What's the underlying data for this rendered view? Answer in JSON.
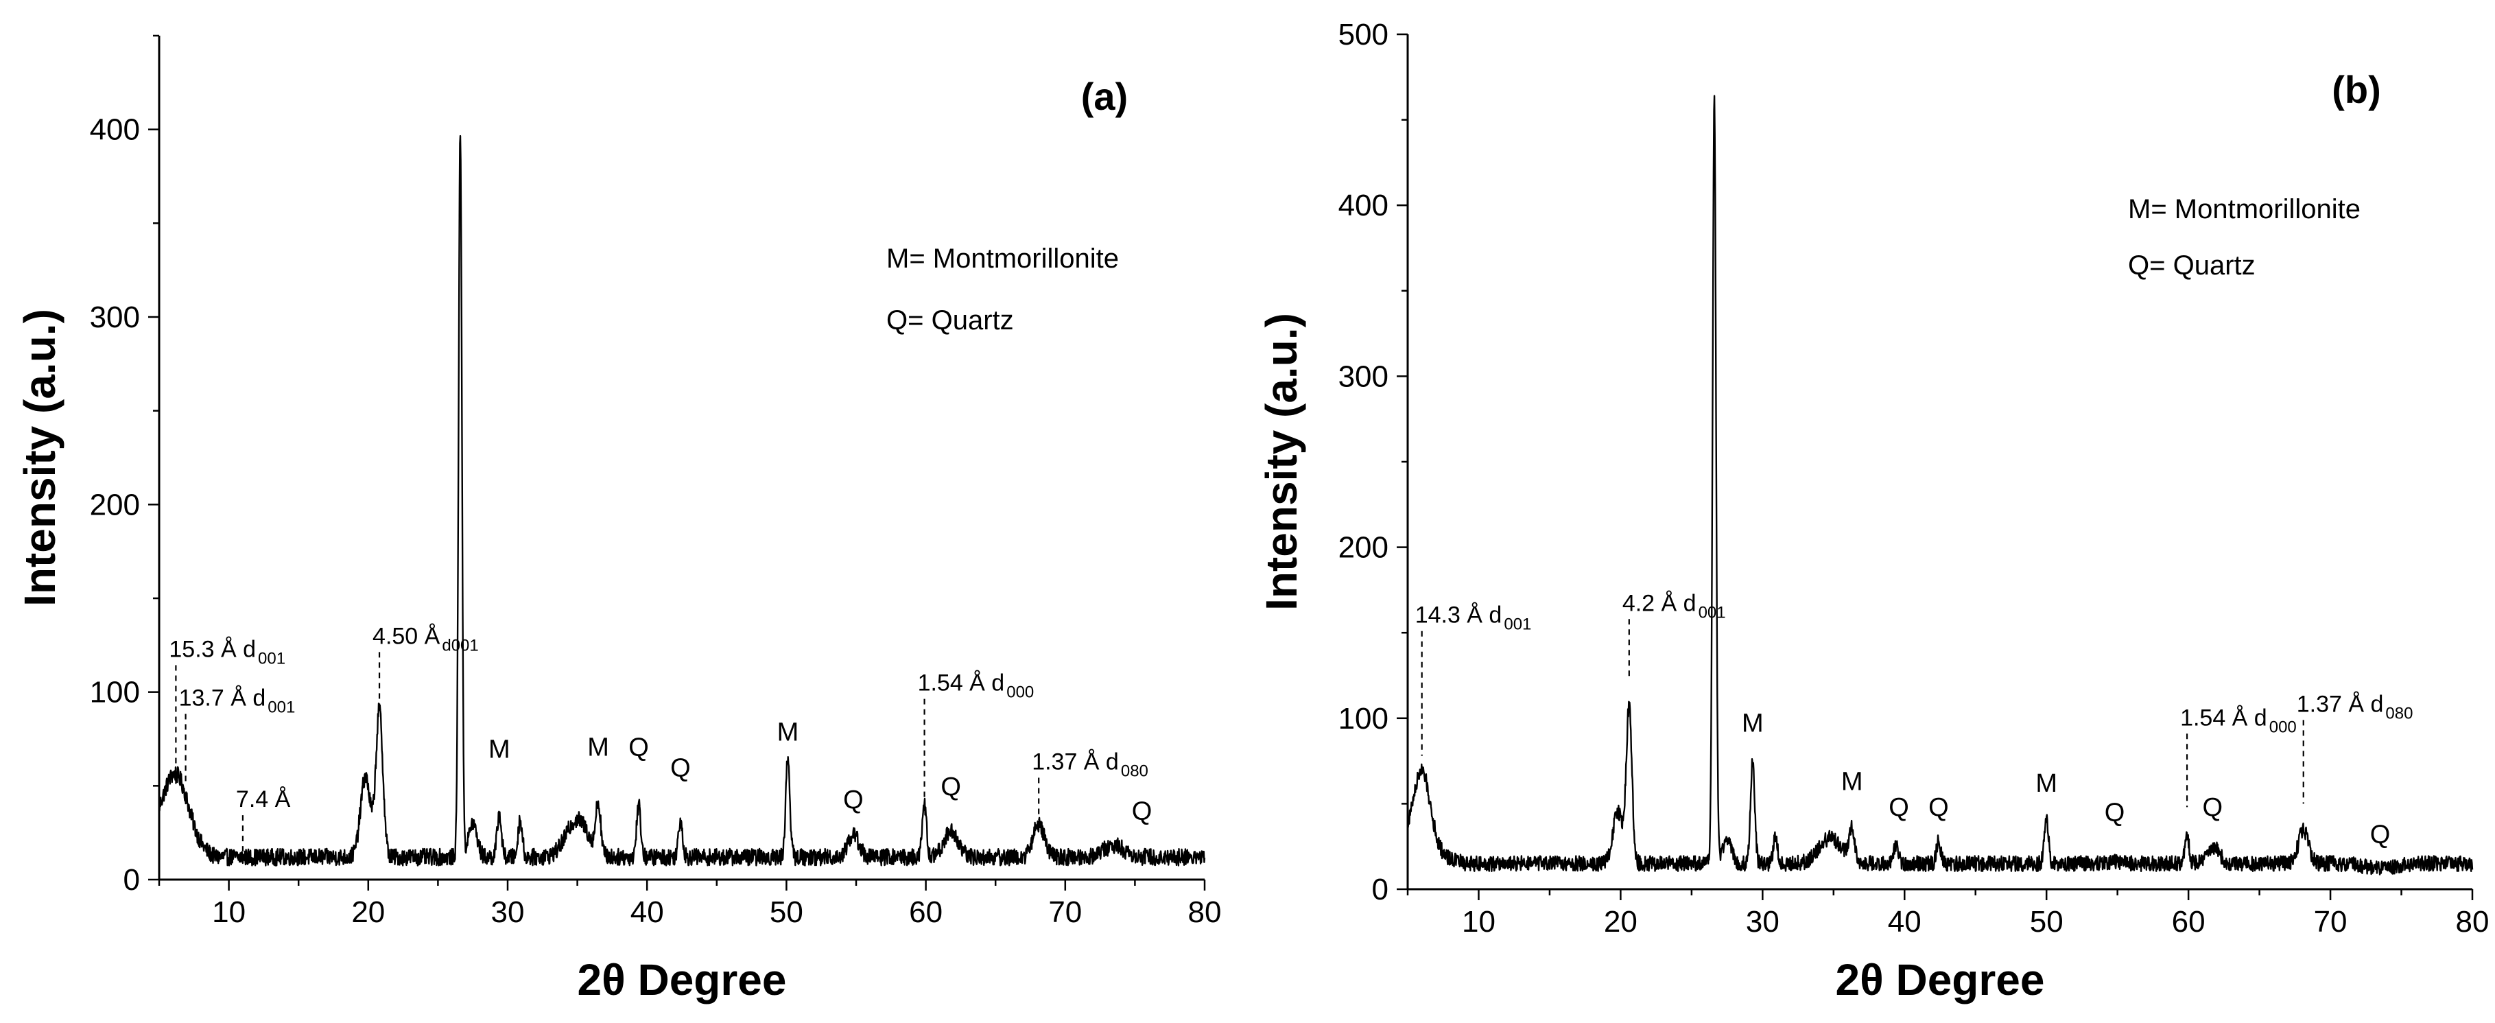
{
  "chart_data": [
    {
      "type": "line",
      "panel": "(a)",
      "xlabel": "2θ Degree",
      "ylabel": "Intensity (a.u.)",
      "xlim": [
        5,
        80
      ],
      "ylim": [
        0,
        450
      ],
      "xticks": [
        10,
        20,
        30,
        40,
        50,
        60,
        70,
        80
      ],
      "yticks": [
        0,
        100,
        200,
        300,
        400
      ],
      "baseline": 12,
      "legend": [
        "M= Montmorillonite",
        "Q= Quartz"
      ],
      "legend_position": "top-right",
      "peaks": [
        {
          "x": 6.2,
          "y": 48,
          "w": 0.9
        },
        {
          "x": 19.8,
          "y": 55,
          "w": 0.35
        },
        {
          "x": 20.8,
          "y": 90,
          "w": 0.25
        },
        {
          "x": 26.6,
          "y": 400,
          "w": 0.12
        },
        {
          "x": 27.5,
          "y": 30,
          "w": 0.3
        },
        {
          "x": 29.4,
          "y": 35,
          "w": 0.15
        },
        {
          "x": 30.9,
          "y": 32,
          "w": 0.15
        },
        {
          "x": 35.0,
          "y": 32,
          "w": 0.8
        },
        {
          "x": 36.5,
          "y": 38,
          "w": 0.18
        },
        {
          "x": 39.4,
          "y": 40,
          "w": 0.15
        },
        {
          "x": 42.4,
          "y": 32,
          "w": 0.15
        },
        {
          "x": 50.1,
          "y": 65,
          "w": 0.15
        },
        {
          "x": 54.8,
          "y": 24,
          "w": 0.4
        },
        {
          "x": 59.9,
          "y": 40,
          "w": 0.15
        },
        {
          "x": 61.8,
          "y": 26,
          "w": 0.5
        },
        {
          "x": 68.1,
          "y": 30,
          "w": 0.4
        },
        {
          "x": 73.5,
          "y": 18,
          "w": 0.8
        }
      ],
      "annotations": [
        {
          "text": "15.3 Å d",
          "sub": "001",
          "x": 6.2,
          "top": 118,
          "bottom": 50
        },
        {
          "text": "13.7 Å d",
          "sub": "001",
          "x": 6.9,
          "top": 92,
          "bottom": 50
        },
        {
          "text": "7.4 Å",
          "sub": "",
          "x": 11.0,
          "top": 38,
          "bottom": 10
        },
        {
          "text": "4.50 Å",
          "sub": "d001",
          "x": 20.8,
          "top": 125,
          "bottom": 92
        },
        {
          "text": "1.54 Å d",
          "sub": "000",
          "x": 59.9,
          "top": 100,
          "bottom": 42
        },
        {
          "text": "1.37 Å d",
          "sub": "080",
          "x": 68.1,
          "top": 58,
          "bottom": 32
        }
      ],
      "labels": [
        {
          "text": "M",
          "x": 29.4,
          "y": 65
        },
        {
          "text": "M",
          "x": 36.5,
          "y": 66
        },
        {
          "text": "Q",
          "x": 39.4,
          "y": 66
        },
        {
          "text": "Q",
          "x": 42.4,
          "y": 55
        },
        {
          "text": "M",
          "x": 50.1,
          "y": 74
        },
        {
          "text": "Q",
          "x": 54.8,
          "y": 38
        },
        {
          "text": "Q",
          "x": 61.8,
          "y": 45
        },
        {
          "text": "Q",
          "x": 75.5,
          "y": 32
        }
      ]
    },
    {
      "type": "line",
      "panel": "(b)",
      "xlabel": "2θ Degree",
      "ylabel": "Intensity (a.u.)",
      "xlim": [
        5,
        80
      ],
      "ylim": [
        0,
        500
      ],
      "xticks": [
        10,
        20,
        30,
        40,
        50,
        60,
        70,
        80
      ],
      "yticks": [
        0,
        100,
        200,
        300,
        400,
        500
      ],
      "baseline": 15,
      "legend": [
        "M= Montmorillonite",
        "Q= Quartz"
      ],
      "legend_position": "top-right",
      "peaks": [
        {
          "x": 6.0,
          "y": 60,
          "w": 0.6
        },
        {
          "x": 19.8,
          "y": 45,
          "w": 0.35
        },
        {
          "x": 20.6,
          "y": 105,
          "w": 0.2
        },
        {
          "x": 26.6,
          "y": 460,
          "w": 0.12
        },
        {
          "x": 27.5,
          "y": 30,
          "w": 0.3
        },
        {
          "x": 29.3,
          "y": 75,
          "w": 0.15
        },
        {
          "x": 30.9,
          "y": 30,
          "w": 0.15
        },
        {
          "x": 34.8,
          "y": 30,
          "w": 0.8
        },
        {
          "x": 36.3,
          "y": 35,
          "w": 0.18
        },
        {
          "x": 39.4,
          "y": 25,
          "w": 0.18
        },
        {
          "x": 42.4,
          "y": 28,
          "w": 0.15
        },
        {
          "x": 50.0,
          "y": 40,
          "w": 0.15
        },
        {
          "x": 54.8,
          "y": 16,
          "w": 0.4
        },
        {
          "x": 59.9,
          "y": 32,
          "w": 0.15
        },
        {
          "x": 61.7,
          "y": 25,
          "w": 0.45
        },
        {
          "x": 68.1,
          "y": 35,
          "w": 0.35
        },
        {
          "x": 73.5,
          "y": 12,
          "w": 1.0
        }
      ],
      "annotations": [
        {
          "text": "14.3 Å d",
          "sub": "001",
          "x": 6.0,
          "top": 155,
          "bottom": 78
        },
        {
          "text": "4.2 Å d",
          "sub": "001",
          "x": 20.6,
          "top": 162,
          "bottom": 122
        },
        {
          "text": "1.54 Å d",
          "sub": "000",
          "x": 59.9,
          "top": 95,
          "bottom": 48
        },
        {
          "text": "1.37 Å d",
          "sub": "080",
          "x": 68.1,
          "top": 103,
          "bottom": 50
        }
      ],
      "labels": [
        {
          "text": "M",
          "x": 29.3,
          "y": 92
        },
        {
          "text": "M",
          "x": 36.3,
          "y": 58
        },
        {
          "text": "Q",
          "x": 39.6,
          "y": 43
        },
        {
          "text": "Q",
          "x": 42.4,
          "y": 43
        },
        {
          "text": "M",
          "x": 50.0,
          "y": 57
        },
        {
          "text": "Q",
          "x": 54.8,
          "y": 40
        },
        {
          "text": "Q",
          "x": 61.7,
          "y": 43
        },
        {
          "text": "Q",
          "x": 73.5,
          "y": 27
        }
      ]
    }
  ]
}
